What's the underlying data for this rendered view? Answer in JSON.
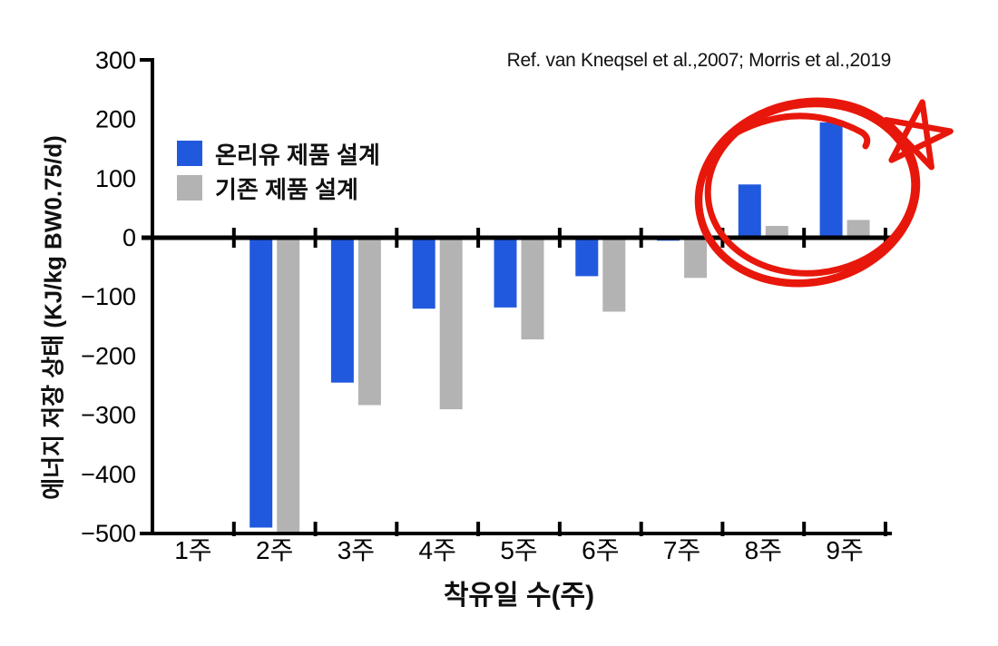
{
  "reference": {
    "text": "Ref. van Kneqsel et al.,2007; Morris et al.,2019"
  },
  "legend": {
    "items": [
      {
        "label": "온리유 제품 설계",
        "color": "#2159DE"
      },
      {
        "label": "기존 제품 설계",
        "color": "#B3B3B3"
      }
    ]
  },
  "chart_data": {
    "type": "bar",
    "title": "",
    "categories": [
      "1주",
      "2주",
      "3주",
      "4주",
      "5주",
      "6주",
      "7주",
      "8주",
      "9주"
    ],
    "series": [
      {
        "name": "온리유 제품 설계",
        "color": "#2159DE",
        "values": [
          0,
          -490,
          -245,
          -120,
          -118,
          -65,
          -5,
          90,
          195
        ]
      },
      {
        "name": "기존 제품 설계",
        "color": "#B3B3B3",
        "values": [
          0,
          -500,
          -283,
          -290,
          -172,
          -125,
          -68,
          20,
          30
        ]
      }
    ],
    "xlabel": "착유일 수(주)",
    "ylabel": "에너지 저장 상태  (KJ/kg BW0.75/d)",
    "ylim": [
      -500,
      300
    ],
    "yticks": [
      300,
      200,
      100,
      0,
      -100,
      -200,
      -300,
      -400,
      -500
    ],
    "grid": false,
    "legend_position": "upper-left-inside",
    "annotation": "hand-drawn red circle with star highlighting the positive bars of weeks 8 and 9"
  },
  "colors": {
    "axis": "#000000",
    "annotation_red": "#E8170B",
    "bar_blue": "#2159DE",
    "bar_gray": "#B3B3B3"
  }
}
